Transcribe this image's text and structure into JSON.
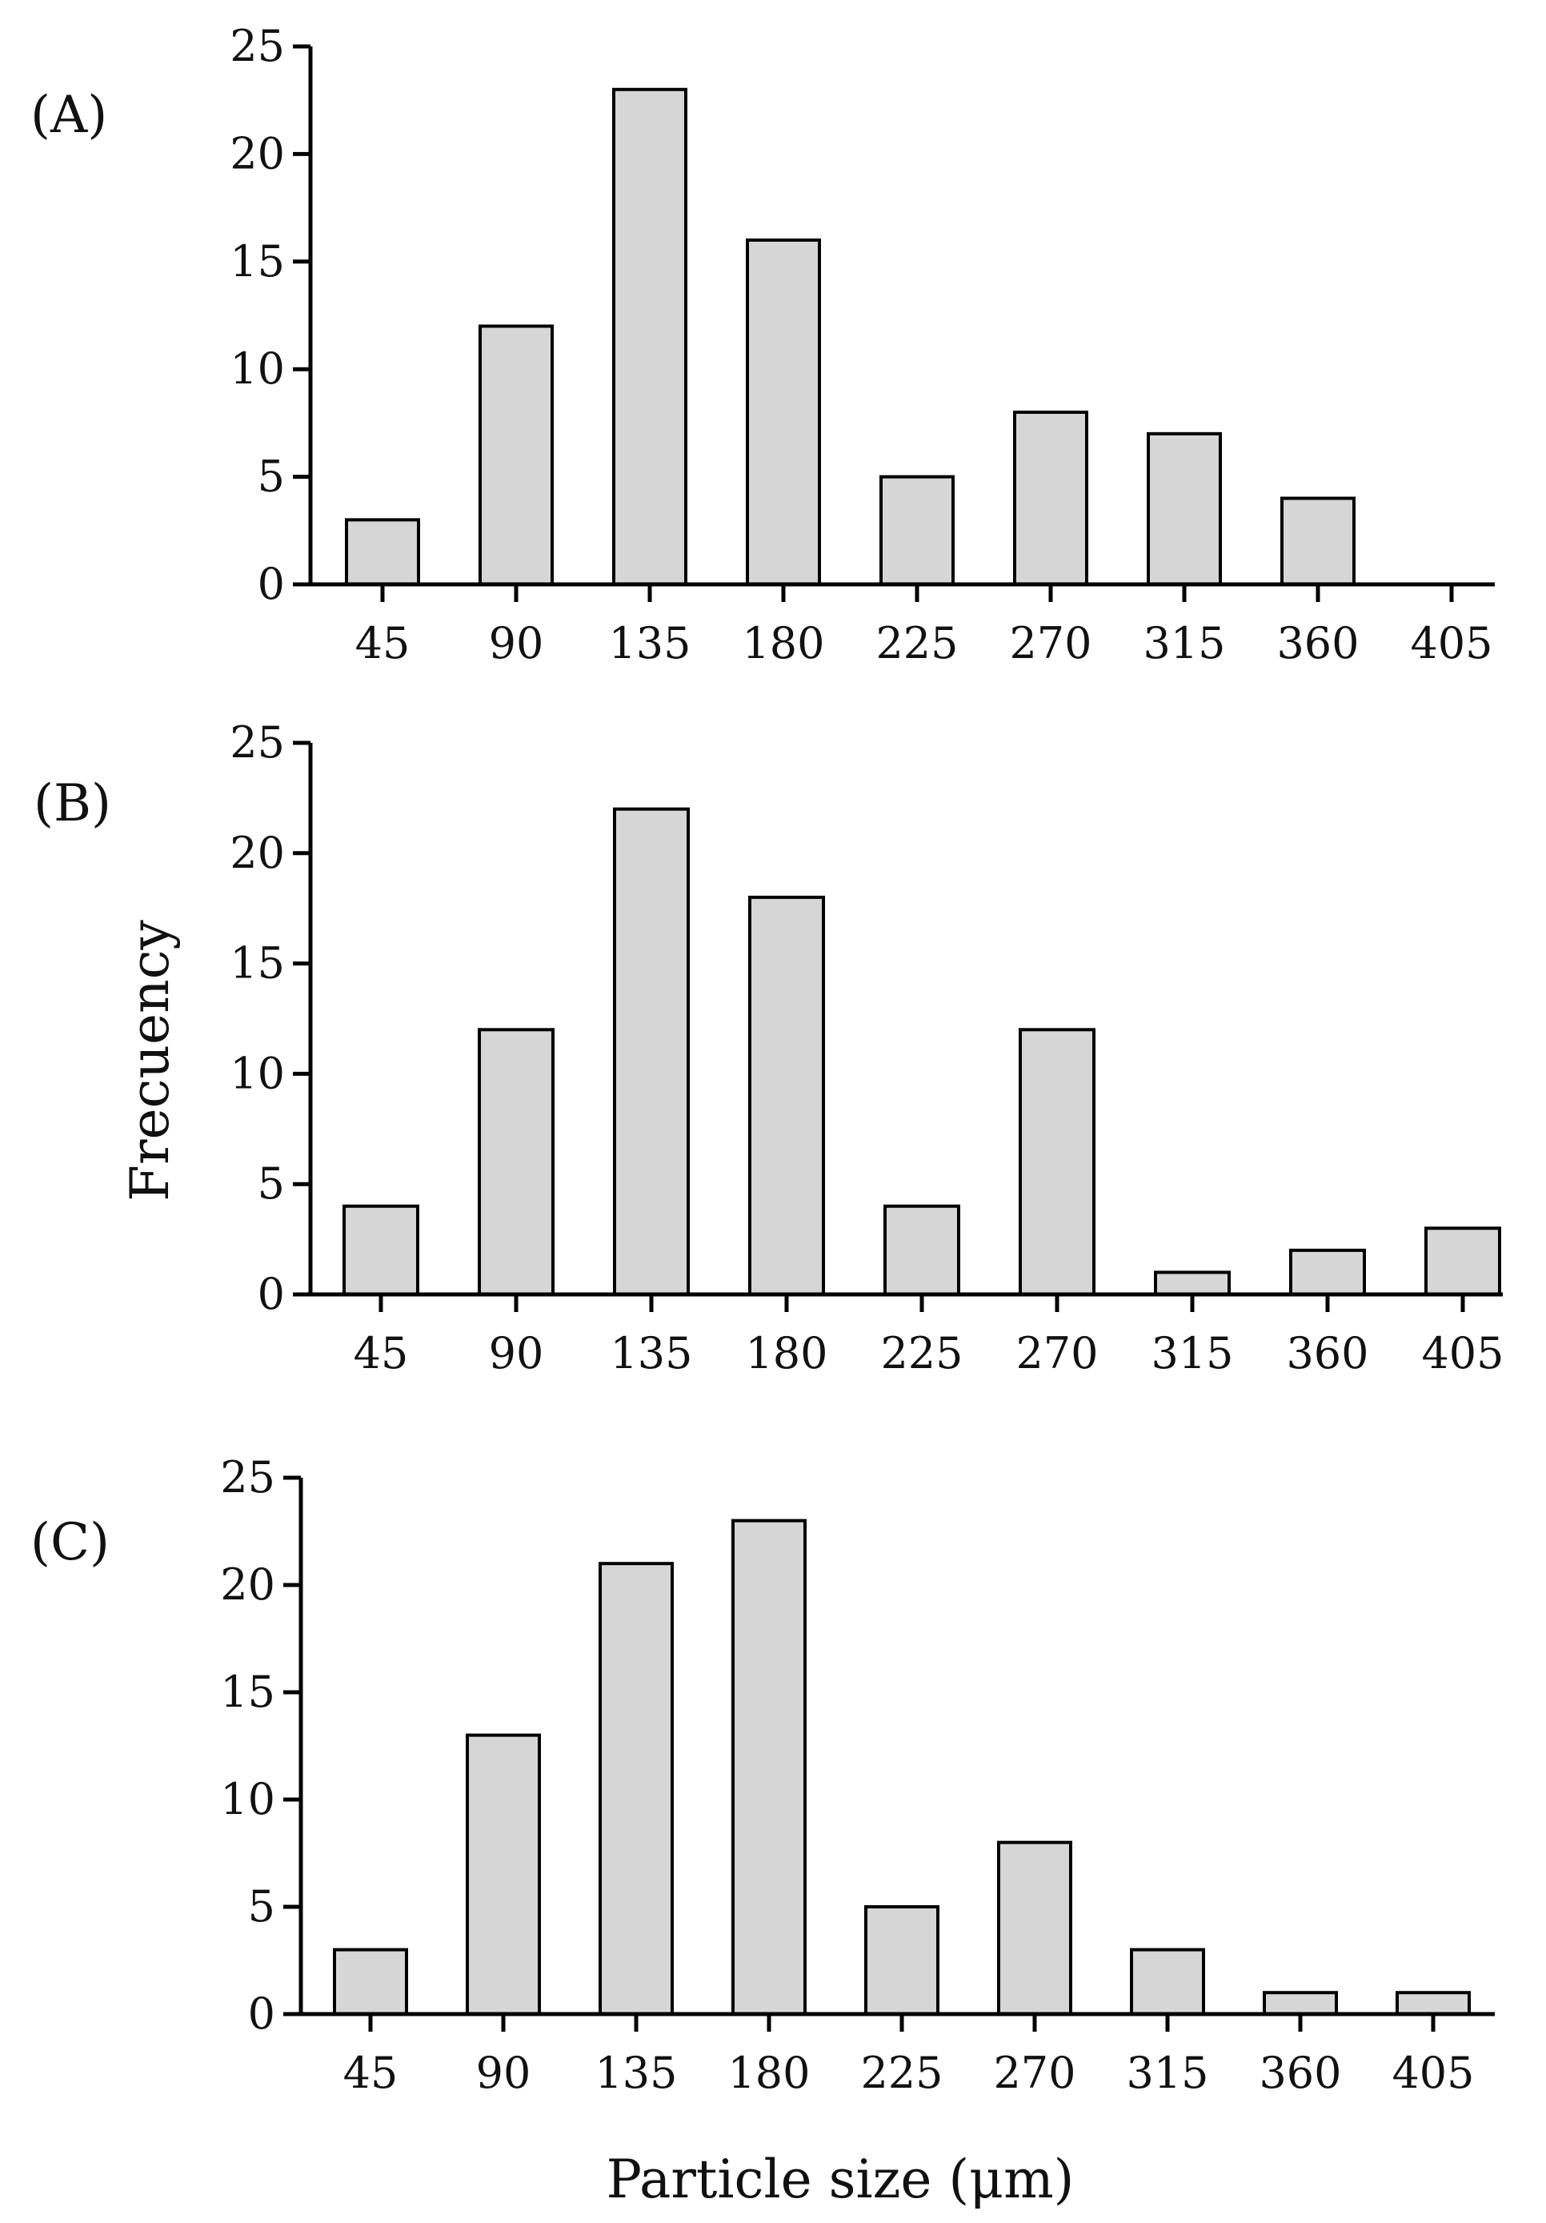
{
  "figure": {
    "y_axis_title": "Frecuency",
    "x_axis_title": "Particle size (μm)"
  },
  "chart_data": [
    {
      "type": "bar",
      "panel_label": "(A)",
      "categories": [
        "45",
        "90",
        "135",
        "180",
        "225",
        "270",
        "315",
        "360",
        "405"
      ],
      "values": [
        3,
        12,
        23,
        16,
        5,
        8,
        7,
        4,
        0
      ],
      "ylim": [
        0,
        25
      ],
      "yticks": [
        "0",
        "5",
        "10",
        "15",
        "20",
        "25"
      ],
      "grid": false,
      "bar_color": "#d6d6d6"
    },
    {
      "type": "bar",
      "panel_label": "(B)",
      "categories": [
        "45",
        "90",
        "135",
        "180",
        "225",
        "270",
        "315",
        "360",
        "405"
      ],
      "values": [
        4,
        12,
        22,
        18,
        4,
        12,
        1,
        2,
        3
      ],
      "ylim": [
        0,
        25
      ],
      "yticks": [
        "0",
        "5",
        "10",
        "15",
        "20",
        "25"
      ],
      "grid": false,
      "bar_color": "#d6d6d6"
    },
    {
      "type": "bar",
      "panel_label": "(C)",
      "categories": [
        "45",
        "90",
        "135",
        "180",
        "225",
        "270",
        "315",
        "360",
        "405"
      ],
      "values": [
        3,
        13,
        21,
        23,
        5,
        8,
        3,
        1,
        1
      ],
      "ylim": [
        0,
        25
      ],
      "yticks": [
        "0",
        "5",
        "10",
        "15",
        "20",
        "25"
      ],
      "grid": false,
      "bar_color": "#d6d6d6"
    }
  ]
}
